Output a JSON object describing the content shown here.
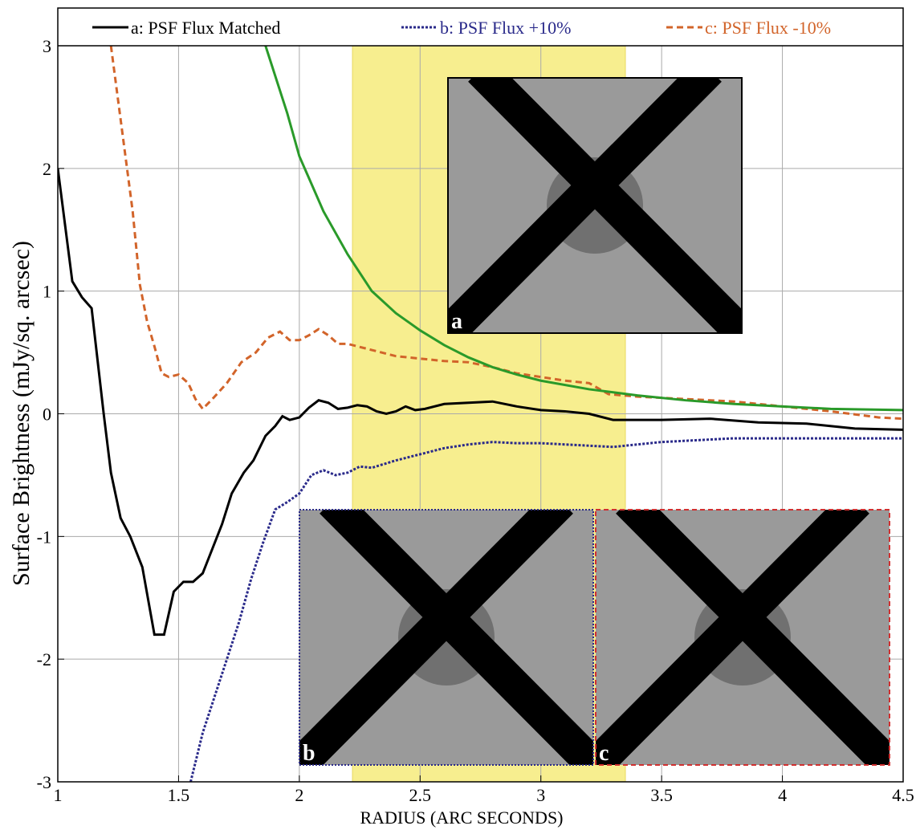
{
  "chart_data": {
    "type": "line",
    "xlabel": "RADIUS (ARC SECONDS)",
    "ylabel": "Surface  Brightness (mJy/sq. arcsec)",
    "xlim": [
      1,
      4.5
    ],
    "ylim": [
      -3,
      3
    ],
    "xticks": [
      1,
      1.5,
      2,
      2.5,
      3,
      3.5,
      4,
      4.5
    ],
    "yticks": [
      -3,
      -2,
      -1,
      0,
      1,
      2,
      3
    ],
    "grid": true,
    "highlight_band": [
      2.22,
      3.35
    ],
    "band_color": "#f7ee8f",
    "series": [
      {
        "name": "a: PSF Flux Matched",
        "color": "#000000",
        "style": "solid",
        "x": [
          1.0,
          1.06,
          1.1,
          1.14,
          1.19,
          1.22,
          1.26,
          1.3,
          1.35,
          1.4,
          1.44,
          1.48,
          1.52,
          1.56,
          1.6,
          1.64,
          1.68,
          1.72,
          1.77,
          1.81,
          1.86,
          1.9,
          1.93,
          1.96,
          2.0,
          2.04,
          2.08,
          2.12,
          2.16,
          2.2,
          2.24,
          2.28,
          2.32,
          2.36,
          2.4,
          2.44,
          2.48,
          2.52,
          2.6,
          2.7,
          2.8,
          2.9,
          3.0,
          3.1,
          3.2,
          3.3,
          3.5,
          3.7,
          3.9,
          4.1,
          4.3,
          4.5
        ],
        "values": [
          2.0,
          1.08,
          0.95,
          0.86,
          0.0,
          -0.48,
          -0.85,
          -1.0,
          -1.25,
          -1.8,
          -1.8,
          -1.45,
          -1.37,
          -1.37,
          -1.3,
          -1.1,
          -0.9,
          -0.65,
          -0.48,
          -0.38,
          -0.18,
          -0.1,
          -0.02,
          -0.05,
          -0.03,
          0.05,
          0.11,
          0.09,
          0.04,
          0.05,
          0.07,
          0.06,
          0.02,
          0.0,
          0.02,
          0.06,
          0.03,
          0.04,
          0.08,
          0.09,
          0.1,
          0.06,
          0.03,
          0.02,
          0.0,
          -0.05,
          -0.05,
          -0.04,
          -0.07,
          -0.08,
          -0.12,
          -0.13
        ]
      },
      {
        "name": "b: PSF Flux  +10%",
        "color": "#2a2a8a",
        "style": "dotted",
        "x": [
          1.55,
          1.6,
          1.65,
          1.7,
          1.75,
          1.8,
          1.85,
          1.9,
          1.95,
          2.0,
          2.05,
          2.1,
          2.15,
          2.2,
          2.25,
          2.3,
          2.4,
          2.5,
          2.6,
          2.7,
          2.8,
          2.9,
          3.0,
          3.1,
          3.3,
          3.5,
          3.8,
          4.0,
          4.5
        ],
        "values": [
          -3.0,
          -2.6,
          -2.3,
          -2.0,
          -1.7,
          -1.35,
          -1.05,
          -0.78,
          -0.72,
          -0.65,
          -0.5,
          -0.46,
          -0.5,
          -0.48,
          -0.43,
          -0.44,
          -0.38,
          -0.33,
          -0.28,
          -0.25,
          -0.23,
          -0.24,
          -0.24,
          -0.25,
          -0.27,
          -0.23,
          -0.2,
          -0.2,
          -0.2
        ]
      },
      {
        "name": "c: PSF Flux -10%",
        "color": "#d2642a",
        "style": "dashed",
        "x": [
          1.22,
          1.25,
          1.28,
          1.31,
          1.34,
          1.37,
          1.4,
          1.43,
          1.46,
          1.5,
          1.54,
          1.57,
          1.6,
          1.64,
          1.7,
          1.76,
          1.82,
          1.87,
          1.92,
          1.96,
          2.0,
          2.04,
          2.08,
          2.12,
          2.16,
          2.2,
          2.3,
          2.4,
          2.5,
          2.6,
          2.7,
          2.8,
          2.9,
          3.0,
          3.1,
          3.2,
          3.28,
          3.4,
          3.6,
          3.8,
          4.0,
          4.2,
          4.4,
          4.5
        ],
        "values": [
          3.0,
          2.55,
          2.1,
          1.65,
          1.05,
          0.75,
          0.55,
          0.33,
          0.3,
          0.32,
          0.25,
          0.12,
          0.04,
          0.12,
          0.25,
          0.42,
          0.5,
          0.62,
          0.67,
          0.6,
          0.6,
          0.64,
          0.69,
          0.64,
          0.57,
          0.57,
          0.52,
          0.47,
          0.45,
          0.43,
          0.42,
          0.38,
          0.33,
          0.3,
          0.27,
          0.25,
          0.16,
          0.14,
          0.12,
          0.1,
          0.06,
          0.02,
          -0.03,
          -0.04
        ]
      },
      {
        "color": "#2a9a2a",
        "style": "solid",
        "x": [
          1.86,
          1.95,
          2.0,
          2.1,
          2.2,
          2.3,
          2.4,
          2.5,
          2.6,
          2.7,
          2.8,
          2.9,
          3.0,
          3.2,
          3.4,
          3.6,
          3.8,
          4.0,
          4.2,
          4.5
        ],
        "values": [
          3.0,
          2.45,
          2.1,
          1.65,
          1.3,
          1.0,
          0.82,
          0.68,
          0.56,
          0.46,
          0.38,
          0.32,
          0.27,
          0.2,
          0.15,
          0.11,
          0.08,
          0.06,
          0.04,
          0.03
        ]
      }
    ],
    "insets": [
      {
        "label": "a"
      },
      {
        "label": "b"
      },
      {
        "label": "c"
      }
    ]
  }
}
